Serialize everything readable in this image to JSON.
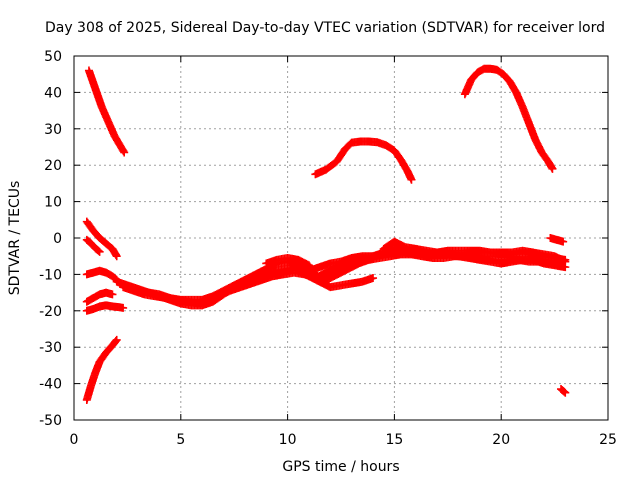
{
  "chart_data": {
    "type": "scatter",
    "title": "Day 308 of 2025, Sidereal Day-to-day VTEC variation (SDTVAR) for receiver lord",
    "xlabel": "GPS time / hours",
    "ylabel": "SDTVAR / TECUs",
    "xlim": [
      0,
      25
    ],
    "ylim": [
      -50,
      50
    ],
    "xticks": [
      0,
      5,
      10,
      15,
      20,
      25
    ],
    "yticks": [
      -50,
      -40,
      -30,
      -20,
      -10,
      0,
      10,
      20,
      30,
      40,
      50
    ],
    "grid": true,
    "marker": "+",
    "color": "#ff0000",
    "series": [
      {
        "name": "track-1",
        "x": [
          0.7,
          1.0,
          1.3,
          1.6,
          1.9,
          2.2,
          2.35
        ],
        "y": [
          46,
          41,
          36,
          32,
          28,
          25,
          23.5
        ]
      },
      {
        "name": "track-2",
        "x": [
          11.3,
          11.8,
          12.3,
          12.7,
          13.0,
          13.4,
          13.8,
          14.2,
          14.6,
          15.0,
          15.3,
          15.6,
          15.8
        ],
        "y": [
          17.5,
          18.8,
          21.0,
          24.5,
          26.2,
          26.5,
          26.5,
          26.3,
          25.5,
          24.0,
          21.5,
          18.5,
          16.0
        ]
      },
      {
        "name": "track-3",
        "x": [
          18.3,
          18.6,
          18.9,
          19.2,
          19.5,
          19.8,
          20.1,
          20.4,
          20.7,
          21.0,
          21.3,
          21.6,
          21.9,
          22.2,
          22.4
        ],
        "y": [
          39.5,
          43.5,
          45.5,
          46.5,
          46.5,
          46.2,
          45.0,
          43.0,
          40.0,
          36.0,
          31.5,
          27.0,
          23.5,
          21.0,
          19.0
        ]
      },
      {
        "name": "track-4",
        "x": [
          0.6,
          0.9,
          1.2,
          1.5,
          1.8,
          2.0
        ],
        "y": [
          4.5,
          2.0,
          0.0,
          -1.5,
          -3.0,
          -5.0
        ]
      },
      {
        "name": "track-5",
        "x": [
          0.6,
          0.8,
          1.0,
          1.2
        ],
        "y": [
          -0.5,
          -1.5,
          -2.8,
          -3.8
        ]
      },
      {
        "name": "track-6",
        "x": [
          0.6,
          0.9,
          1.2,
          1.5,
          1.8,
          2.0
        ],
        "y": [
          -10,
          -9.5,
          -9.0,
          -9.5,
          -10.5,
          -11.5
        ]
      },
      {
        "name": "track-7",
        "x": [
          0.6,
          0.9,
          1.2,
          1.5,
          1.8
        ],
        "y": [
          -17.5,
          -16.5,
          -15.5,
          -15.0,
          -15.5
        ]
      },
      {
        "name": "track-8",
        "x": [
          0.6,
          0.9,
          1.2,
          1.5,
          1.8,
          2.1,
          2.3
        ],
        "y": [
          -20.0,
          -19.5,
          -18.8,
          -18.5,
          -18.8,
          -19.0,
          -19.2
        ]
      },
      {
        "name": "track-9",
        "x": [
          0.6,
          0.8,
          1.0,
          1.2,
          1.5,
          1.8,
          2.0
        ],
        "y": [
          -44.5,
          -40.5,
          -37.0,
          -34.0,
          -31.5,
          -29.5,
          -28.0
        ]
      },
      {
        "name": "track-10",
        "x": [
          22.3,
          22.6,
          22.9
        ],
        "y": [
          0.0,
          -0.5,
          -1.0
        ]
      },
      {
        "name": "track-11",
        "x": [
          22.8,
          23.0
        ],
        "y": [
          -41.5,
          -42.5
        ]
      },
      {
        "name": "main-band-a",
        "x": [
          2.0,
          2.5,
          3.0,
          3.5,
          4.0,
          4.5,
          5.0,
          5.5,
          6.0,
          6.5,
          7.0,
          7.5,
          8.0,
          8.5,
          9.0,
          9.5,
          10.0,
          10.5,
          11.0,
          11.5,
          12.0,
          12.5,
          13.0,
          13.5,
          14.0,
          14.5,
          15.0,
          15.5,
          16.0,
          16.5,
          17.0,
          17.5,
          18.0,
          18.5,
          19.0,
          19.5,
          20.0,
          20.5,
          21.0,
          21.5,
          22.0,
          22.5,
          23.0
        ],
        "y": [
          -12,
          -13,
          -14,
          -15,
          -15.5,
          -16.5,
          -17,
          -17,
          -17,
          -16,
          -14.5,
          -13,
          -12,
          -11,
          -10,
          -9,
          -8.5,
          -8,
          -9,
          -8,
          -7,
          -6.5,
          -5.5,
          -5,
          -5,
          -4.5,
          -3.5,
          -3.5,
          -3.5,
          -4,
          -4.5,
          -4.5,
          -4.5,
          -4,
          -4,
          -4,
          -4.5,
          -4.5,
          -4,
          -4.5,
          -5,
          -5.5,
          -6
        ]
      },
      {
        "name": "main-band-b",
        "x": [
          2.3,
          2.8,
          3.3,
          3.8,
          4.3,
          4.8,
          5.3,
          5.8,
          6.3,
          6.8,
          7.3,
          7.8,
          8.3,
          8.8,
          9.3,
          9.8,
          10.3,
          10.8,
          11.3,
          11.8,
          12.3,
          12.8,
          13.3,
          13.8,
          14.3,
          14.8,
          15.3,
          15.8,
          16.3,
          16.8,
          17.3,
          17.8,
          18.3,
          18.8,
          19.3,
          19.8,
          20.3,
          20.8,
          21.3,
          21.8,
          22.3,
          22.8
        ],
        "y": [
          -13.5,
          -14.5,
          -15.5,
          -16,
          -16.5,
          -17,
          -17.5,
          -18,
          -17.5,
          -16,
          -14.5,
          -13.5,
          -12.5,
          -11.5,
          -10.5,
          -10,
          -9.5,
          -10,
          -11,
          -9.5,
          -8.5,
          -7.5,
          -7,
          -6,
          -5.5,
          -5,
          -4.5,
          -4.5,
          -5,
          -5.5,
          -5.5,
          -5,
          -5,
          -5.5,
          -6,
          -6,
          -6,
          -6,
          -6.5,
          -6.5,
          -7,
          -7.5
        ]
      },
      {
        "name": "main-band-c",
        "x": [
          3.0,
          3.5,
          4.0,
          4.5,
          5.0,
          5.5,
          6.0,
          6.5,
          7.0,
          7.5,
          8.0,
          8.5,
          9.0,
          9.5,
          10.0,
          10.5,
          11.0,
          11.5,
          12.0,
          12.5,
          13.0,
          13.5,
          14.0,
          14.5,
          15.0,
          15.5,
          16.0,
          16.5,
          17.0,
          17.5,
          18.0,
          18.5,
          19.0,
          19.5,
          20.0,
          20.5,
          21.0,
          21.5,
          22.0,
          22.5,
          23.0
        ],
        "y": [
          -14.5,
          -15,
          -16,
          -17,
          -18,
          -18.5,
          -18.5,
          -17.5,
          -15.5,
          -13,
          -11.5,
          -10,
          -8.5,
          -7,
          -6.5,
          -7.5,
          -8.5,
          -11,
          -9,
          -7,
          -6,
          -5.5,
          -5,
          -4,
          -3,
          -4,
          -4.5,
          -4.5,
          -4,
          -3.5,
          -3.5,
          -3.5,
          -3.5,
          -4,
          -4,
          -4,
          -3.5,
          -4,
          -4.5,
          -5,
          -6.5
        ]
      },
      {
        "name": "main-band-d",
        "x": [
          9.0,
          9.5,
          10.0,
          10.5,
          11.0,
          11.5,
          12.0,
          12.5,
          13.0,
          13.5,
          14.0
        ],
        "y": [
          -7,
          -6,
          -5.5,
          -6,
          -7.5,
          -12,
          -13.5,
          -13,
          -12.5,
          -12,
          -11
        ]
      },
      {
        "name": "main-band-e",
        "x": [
          14.5,
          15.0,
          15.5,
          16.0,
          16.5,
          17.0,
          17.5,
          18.0,
          18.5,
          19.0,
          19.5,
          20.0,
          20.5,
          21.0,
          21.5,
          22.0,
          22.5,
          23.0
        ],
        "y": [
          -3,
          -1,
          -2.5,
          -3,
          -3.5,
          -4,
          -4.5,
          -5,
          -5.5,
          -6,
          -6.5,
          -7,
          -6.5,
          -6,
          -6,
          -7,
          -7.5,
          -8
        ]
      },
      {
        "name": "main-band-f",
        "x": [
          10.5,
          11.0,
          11.5,
          12.0,
          12.5,
          13.0,
          13.5,
          14.0
        ],
        "y": [
          -9,
          -10.5,
          -12,
          -11,
          -9.5,
          -8,
          -6.5,
          -5.5
        ]
      }
    ]
  }
}
